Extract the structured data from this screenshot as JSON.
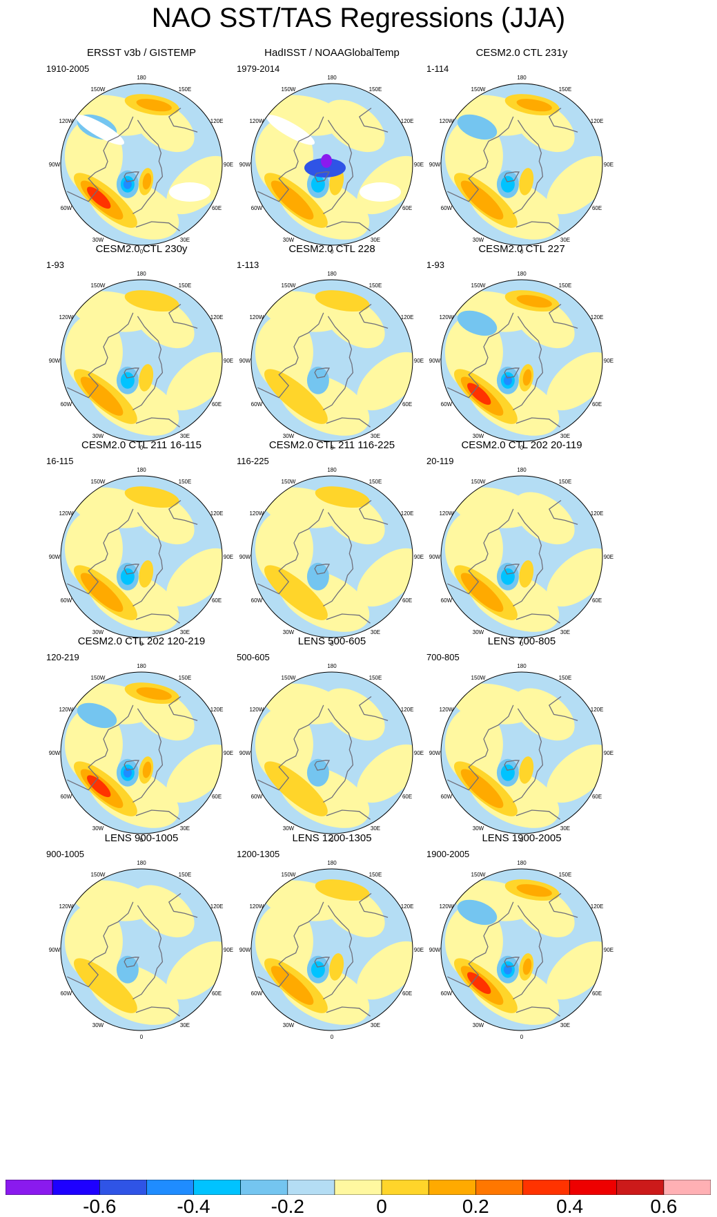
{
  "title": "NAO SST/TAS Regressions (JJA)",
  "chart_data": {
    "type": "polar stereographic contour maps",
    "variable": "SST/TAS regression onto NAO index",
    "season": "JJA",
    "longitude_labels": [
      "180",
      "150E",
      "120E",
      "90E",
      "60E",
      "30E",
      "0",
      "30W",
      "60W",
      "90W",
      "120W",
      "150W"
    ],
    "colorbar": {
      "levels": [
        -0.7,
        -0.6,
        -0.5,
        -0.4,
        -0.3,
        -0.2,
        -0.1,
        0,
        0.1,
        0.2,
        0.3,
        0.4,
        0.5,
        0.6,
        0.7
      ],
      "tick_labels": [
        "-0.6",
        "-0.4",
        "-0.2",
        "0",
        "0.2",
        "0.4",
        "0.6"
      ],
      "colors": [
        "#8a1aee",
        "#1e00ff",
        "#2f54e6",
        "#1f8cff",
        "#00c3ff",
        "#74c5f0",
        "#b4ddf4",
        "#fff8a0",
        "#ffd52a",
        "#ffaa00",
        "#ff7700",
        "#ff3300",
        "#ee0000",
        "#cc1a1a",
        "#ffb0b4"
      ]
    },
    "panels": [
      {
        "title": "ERSST v3b / GISTEMP",
        "period": "1910-2005",
        "atl_tripole": 3,
        "pacific": 2,
        "gaps": true
      },
      {
        "title": "HadISST / NOAAGlobalTemp",
        "period": "1979-2014",
        "atl_tripole": 2,
        "pacific": 0,
        "gaps": true,
        "arctic_purple": true
      },
      {
        "title": "CESM2.0 CTL 231y",
        "period": "1-114",
        "atl_tripole": 2,
        "pacific": 2
      },
      {
        "title": "CESM2.0 CTL 230y",
        "period": "1-93",
        "atl_tripole": 2,
        "pacific": 1
      },
      {
        "title": "CESM2.0 CTL 228",
        "period": "1-113",
        "atl_tripole": 1,
        "pacific": 1
      },
      {
        "title": "CESM2.0 CTL 227",
        "period": "1-93",
        "atl_tripole": 3,
        "pacific": 2
      },
      {
        "title": "CESM2.0 CTL 211 16-115",
        "period": "16-115",
        "atl_tripole": 2,
        "pacific": 1
      },
      {
        "title": "CESM2.0 CTL 211 116-225",
        "period": "116-225",
        "atl_tripole": 1,
        "pacific": 1
      },
      {
        "title": "CESM2.0 CTL 202 20-119",
        "period": "20-119",
        "atl_tripole": 2,
        "pacific": 0
      },
      {
        "title": "CESM2.0 CTL 202 120-219",
        "period": "120-219",
        "atl_tripole": 3,
        "pacific": 2
      },
      {
        "title": "LENS 500-605",
        "period": "500-605",
        "atl_tripole": 1,
        "pacific": 0
      },
      {
        "title": "LENS 700-805",
        "period": "700-805",
        "atl_tripole": 2,
        "pacific": 0
      },
      {
        "title": "LENS 900-1005",
        "period": "900-1005",
        "atl_tripole": 1,
        "pacific": 0
      },
      {
        "title": "LENS 1200-1305",
        "period": "1200-1305",
        "atl_tripole": 2,
        "pacific": 1
      },
      {
        "title": "LENS 1900-2005",
        "period": "1900-2005",
        "atl_tripole": 3,
        "pacific": 2
      }
    ]
  }
}
